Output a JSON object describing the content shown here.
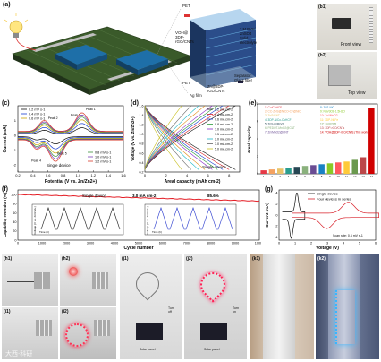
{
  "panels": {
    "a": {
      "label": "(a)",
      "pet_top": "PET",
      "pet_bottom": "PET",
      "ag_film": "Ag film",
      "cathode": "VOH@\n3DP-\nrGO/CNTs",
      "electrolyte": "2 M PVA/\nZnSO4\nSolid\nelectrolyte",
      "separator": "Separator:\nGlass fiber",
      "anode": "Zn@3DP-\nrGO/CNTs"
    },
    "b1": {
      "label": "(b1)",
      "caption": "Front view"
    },
    "b2": {
      "label": "(b2)",
      "caption": "Top view"
    },
    "c": {
      "label": "(c)",
      "xlabel": "Potential (V vs. Zn/Zn2+)",
      "ylabel": "Current (mA)",
      "legend_left": [
        "0.2 mV s-1",
        "0.4 mV s-1",
        "0.6 mV s-1"
      ],
      "legend_right": [
        "0.8 mV s-1",
        "1.0 mV s-1",
        "1.2 mV s-1"
      ],
      "peaks": [
        "Peak 1",
        "Peak 2",
        "Peak 3",
        "Peak 4",
        "Peak 5"
      ],
      "note": "Single device",
      "xticks": [
        "0.2",
        "0.4",
        "0.6",
        "0.8",
        "1.0",
        "1.2",
        "1.4",
        "1.6"
      ],
      "yticks": [
        "1",
        "0",
        "-1",
        "-2"
      ]
    },
    "d": {
      "label": "(d)",
      "xlabel": "Areal capacity (mAh cm-2)",
      "ylabel": "Voltage (V vs. Zn/Zn2+)",
      "legend": [
        "0.2 mA cm-2",
        "0.4 mA cm-2",
        "0.6 mA cm-2",
        "0.8 mA cm-2",
        "1.0 mA cm-2",
        "1.5 mA cm-2",
        "2.0 mA cm-2",
        "3.0 mA cm-2",
        "5.0 mA cm-2"
      ],
      "note": "Single device",
      "xticks": [
        "0",
        "2",
        "4",
        "6",
        "8"
      ],
      "yticks": [
        "0.2",
        "0.4",
        "0.6",
        "0.8",
        "1.0",
        "1.2",
        "1.4",
        "1.6"
      ]
    },
    "e": {
      "label": "(e)",
      "ylabel": "Areal capacity",
      "legend": [
        "1: Cu/CoHCF",
        "2: CC-ZHS@NiCO-CF@NiO",
        "3: ZnS/CNT",
        "4: 3DP-NiCo-CoHCF",
        "5: ZnS-Li/RGO",
        "6: PEDOT-MnO2@CNT",
        "7: Zn/MnO2@CNT",
        "8: ZnS-NiO",
        "9: NaV3O8·1.5H2O",
        "10: Zn//MnO2",
        "11: 3DP-Ni-Fe",
        "12: Zn/V2O5",
        "13: 3DP-rGO/CNTs",
        "14: VOH@3DP-rGO/CNTs (This work)"
      ],
      "xticks": [
        "1",
        "2",
        "3",
        "4",
        "5",
        "6",
        "7",
        "8",
        "9",
        "10",
        "11",
        "12",
        "13",
        "14"
      ],
      "ylabel_ticks": [
        "0",
        "2",
        "4",
        "6",
        "8"
      ]
    },
    "f": {
      "label": "(f)",
      "xlabel": "Cycle number",
      "ylabel": "Capability retention (%)",
      "title_left": "Single device",
      "rate": "3.0 mA cm-2",
      "retention": "85.6%",
      "inset_ylabel": "Voltage (V vs. Zn/Zn2+)",
      "inset_xlabel": "Time (h)",
      "xticks": [
        "0",
        "1000",
        "2000",
        "3000",
        "4000",
        "5000",
        "6000",
        "7000",
        "8000",
        "9000",
        "10000"
      ],
      "yticks": [
        "100",
        "80",
        "60",
        "40",
        "20",
        "0"
      ]
    },
    "g": {
      "label": "(g)",
      "xlabel": "Voltage (V)",
      "ylabel": "Current (mA)",
      "legend": [
        "Single device",
        "Four devices in series"
      ],
      "scan_rate": "Scan rate: 0.6 mV s-1",
      "xticks": [
        "0",
        "1",
        "2",
        "3",
        "4",
        "5",
        "6"
      ],
      "yticks": [
        "4",
        "2",
        "0",
        "-2",
        "-4"
      ]
    },
    "photos": {
      "h1": "(h1)",
      "h2": "(h2)",
      "i1": "(i1)",
      "i2": "(i2)",
      "j1": "(j1)",
      "j2": "(j2)",
      "k1": "(k1)",
      "k2": "(k2)",
      "turn_off": "Turn\noff",
      "turn_on": "Turn\non",
      "solar_panel": "Solar panel",
      "watermark": "大西·科研"
    }
  },
  "colors": {
    "curve_black": "#111111",
    "curve_red": "#d8202a",
    "curve_blue": "#2233cc",
    "retention_red": "#e41e26"
  },
  "chart_data": [
    {
      "type": "line",
      "id": "c",
      "title": "",
      "xlabel": "Potential (V vs. Zn/Zn2+)",
      "ylabel": "Current (mA)",
      "xlim": [
        0.2,
        1.6
      ],
      "ylim": [
        -2.5,
        2.0
      ],
      "series": [
        {
          "name": "0.2 mV s-1",
          "scale": 0.35
        },
        {
          "name": "0.4 mV s-1",
          "scale": 0.55
        },
        {
          "name": "0.6 mV s-1",
          "scale": 0.72
        },
        {
          "name": "0.8 mV s-1",
          "scale": 0.85
        },
        {
          "name": "1.0 mV s-1",
          "scale": 0.95
        },
        {
          "name": "1.2 mV s-1",
          "scale": 1.05
        }
      ]
    },
    {
      "type": "line",
      "id": "d",
      "xlabel": "Areal capacity (mAh cm-2)",
      "ylabel": "Voltage (V vs. Zn/Zn2+)",
      "xlim": [
        0,
        9
      ],
      "ylim": [
        0.2,
        1.6
      ],
      "series": [
        {
          "name": "0.2 mA cm-2",
          "capacity": 8.6
        },
        {
          "name": "0.4 mA cm-2",
          "capacity": 8.0
        },
        {
          "name": "0.6 mA cm-2",
          "capacity": 7.4
        },
        {
          "name": "0.8 mA cm-2",
          "capacity": 6.9
        },
        {
          "name": "1.0 mA cm-2",
          "capacity": 6.4
        },
        {
          "name": "1.5 mA cm-2",
          "capacity": 5.7
        },
        {
          "name": "2.0 mA cm-2",
          "capacity": 5.1
        },
        {
          "name": "3.0 mA cm-2",
          "capacity": 4.4
        },
        {
          "name": "5.0 mA cm-2",
          "capacity": 3.5
        }
      ]
    },
    {
      "type": "bar",
      "id": "e",
      "categories": [
        "1",
        "2",
        "3",
        "4",
        "5",
        "6",
        "7",
        "8",
        "9",
        "10",
        "11",
        "12",
        "13",
        "14"
      ],
      "values": [
        0.4,
        0.5,
        0.6,
        0.7,
        0.8,
        0.9,
        1.0,
        1.1,
        1.2,
        1.3,
        1.4,
        1.6,
        1.9,
        7.5
      ],
      "ylabel": "Areal capacity",
      "ylim": [
        0,
        8
      ]
    },
    {
      "type": "line",
      "id": "f",
      "xlabel": "Cycle number",
      "ylabel": "Capability retention (%)",
      "xlim": [
        0,
        10000
      ],
      "ylim": [
        0,
        110
      ],
      "series": [
        {
          "name": "Single device",
          "start": 100,
          "end": 85.6
        }
      ]
    },
    {
      "type": "line",
      "id": "g",
      "xlabel": "Voltage (V)",
      "ylabel": "Current (mA)",
      "xlim": [
        0,
        6
      ],
      "ylim": [
        -4.5,
        4.5
      ],
      "series": [
        {
          "name": "Single device",
          "vmin": 0.2,
          "vmax": 1.6
        },
        {
          "name": "Four devices in series",
          "vmin": 0.8,
          "vmax": 6.2
        }
      ]
    }
  ]
}
